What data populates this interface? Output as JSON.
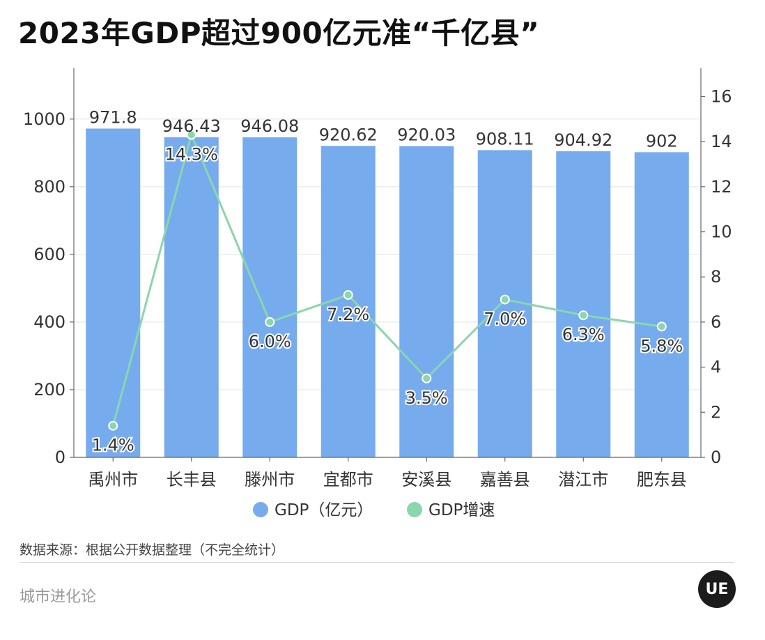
{
  "title": "2023年GDP超过900亿元准“千亿县”",
  "source_note": "数据来源：根据公开数据整理（不完全统计）",
  "brand": {
    "name": "城市进化论",
    "logo_text": "UE"
  },
  "chart_data": {
    "type": "bar",
    "categories": [
      "禹州市",
      "长丰县",
      "滕州市",
      "宜都市",
      "安溪县",
      "嘉善县",
      "潜江市",
      "肥东县"
    ],
    "series": [
      {
        "name": "GDP（亿元）",
        "type": "bar",
        "axis": "left",
        "color": "#76abee",
        "values": [
          971.8,
          946.43,
          946.08,
          920.62,
          920.03,
          908.11,
          904.92,
          902
        ],
        "labels": [
          "971.8",
          "946.43",
          "946.08",
          "920.62",
          "920.03",
          "908.11",
          "904.92",
          "902"
        ]
      },
      {
        "name": "GDP增速",
        "type": "line",
        "axis": "right",
        "color": "#8ad6ad",
        "values": [
          1.4,
          14.3,
          6.0,
          7.2,
          3.5,
          7.0,
          6.3,
          5.8
        ],
        "labels": [
          "1.4%",
          "14.3%",
          "6.0%",
          "7.2%",
          "3.5%",
          "7.0%",
          "6.3%",
          "5.8%"
        ]
      }
    ],
    "y_left": {
      "min": 0,
      "max": 1150,
      "ticks": [
        0,
        200,
        400,
        600,
        800,
        1000
      ]
    },
    "y_right": {
      "min": 0,
      "max": 17.25,
      "ticks": [
        0,
        2,
        4,
        6,
        8,
        10,
        12,
        14,
        16
      ]
    },
    "grid": true,
    "legend": "bottom-center"
  }
}
